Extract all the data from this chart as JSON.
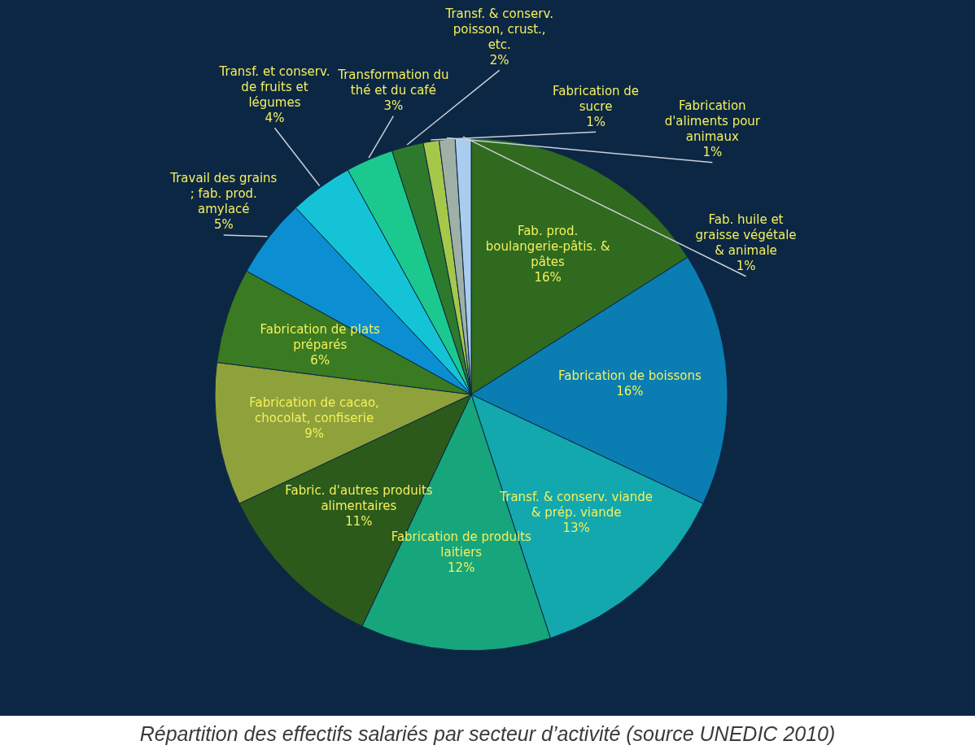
{
  "chart_data": {
    "type": "pie",
    "categories": [
      "Fab. prod. boulangerie-pâtis. & pâtes",
      "Fabrication de boissons",
      "Transf. & conserv. viande & prép. viande",
      "Fabrication de produits laitiers",
      "Fabric. d'autres produits alimentaires",
      "Fabrication de cacao, chocolat, confiserie",
      "Fabrication de plats préparés",
      "Travail des grains ; fab. prod. amylacé",
      "Transf. et conserv. de fruits et légumes",
      "Transformation du thé et du café",
      "Transf. & conserv. poisson, crust., etc.",
      "Fabrication de sucre",
      "Fabrication d'aliments pour animaux",
      "Fab. huile et graisse végétale & animale"
    ],
    "values": [
      16,
      16,
      13,
      12,
      11,
      9,
      6,
      5,
      4,
      3,
      2,
      1,
      1,
      1
    ],
    "colors": [
      "#2f6a1f",
      "#0a7db3",
      "#13a8ad",
      "#17a57c",
      "#2b5a1b",
      "#8ea13b",
      "#3a7a22",
      "#0b8fd2",
      "#14c4d6",
      "#1bc98e",
      "#2d7a2c",
      "#a6c84a",
      "#9fb0a6",
      "#a9cdef"
    ],
    "value_labels": [
      "16%",
      "16%",
      "13%",
      "12%",
      "11%",
      "9%",
      "6%",
      "5%",
      "4%",
      "3%",
      "2%",
      "1%",
      "1%",
      "1%"
    ],
    "annotations": [
      "Répartition des effectifs salariés par secteur d’activité (source UNEDIC 2010)"
    ]
  }
}
